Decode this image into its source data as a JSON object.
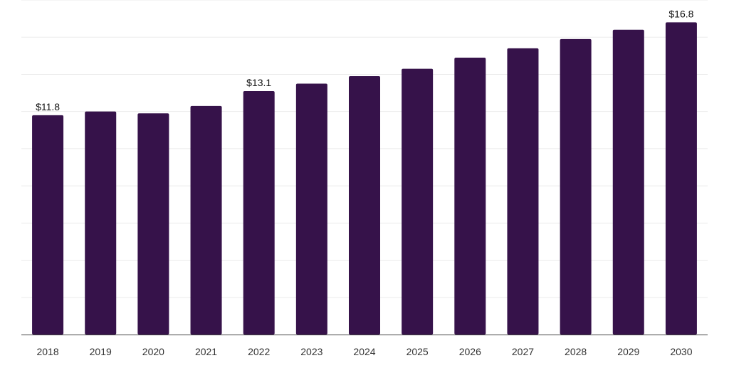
{
  "chart_data": {
    "type": "bar",
    "categories": [
      "2018",
      "2019",
      "2020",
      "2021",
      "2022",
      "2023",
      "2024",
      "2025",
      "2026",
      "2027",
      "2028",
      "2029",
      "2030"
    ],
    "values": [
      11.8,
      12.0,
      11.9,
      12.3,
      13.1,
      13.5,
      13.9,
      14.3,
      14.9,
      15.4,
      15.9,
      16.4,
      16.8
    ],
    "data_labels": [
      {
        "index": 0,
        "text": "$11.8"
      },
      {
        "index": 4,
        "text": "$13.1"
      },
      {
        "index": 12,
        "text": "$16.8"
      }
    ],
    "title": "",
    "xlabel": "",
    "ylabel": "",
    "ylim": [
      0,
      18
    ],
    "grid": true,
    "bar_color": "#36124a"
  }
}
